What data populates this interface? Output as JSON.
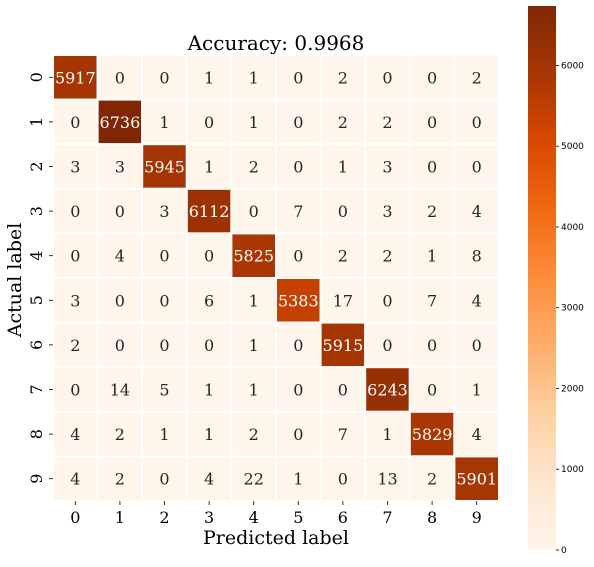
{
  "chart_data": {
    "type": "heatmap",
    "title": "Accuracy: 0.9968",
    "xlabel": "Predicted label",
    "ylabel": "Actual label",
    "x_categories": [
      "0",
      "1",
      "2",
      "3",
      "4",
      "5",
      "6",
      "7",
      "8",
      "9"
    ],
    "y_categories": [
      "0",
      "1",
      "2",
      "3",
      "4",
      "5",
      "6",
      "7",
      "8",
      "9"
    ],
    "matrix": [
      [
        5917,
        0,
        0,
        1,
        1,
        0,
        2,
        0,
        0,
        2
      ],
      [
        0,
        6736,
        1,
        0,
        1,
        0,
        2,
        2,
        0,
        0
      ],
      [
        3,
        3,
        5945,
        1,
        2,
        0,
        1,
        3,
        0,
        0
      ],
      [
        0,
        0,
        3,
        6112,
        0,
        7,
        0,
        3,
        2,
        4
      ],
      [
        0,
        4,
        0,
        0,
        5825,
        0,
        2,
        2,
        1,
        8
      ],
      [
        3,
        0,
        0,
        6,
        1,
        5383,
        17,
        0,
        7,
        4
      ],
      [
        2,
        0,
        0,
        0,
        1,
        0,
        5915,
        0,
        0,
        0
      ],
      [
        0,
        14,
        5,
        1,
        1,
        0,
        0,
        6243,
        0,
        1
      ],
      [
        4,
        2,
        1,
        1,
        2,
        0,
        7,
        1,
        5829,
        4
      ],
      [
        4,
        2,
        0,
        4,
        22,
        1,
        0,
        13,
        2,
        5901
      ]
    ],
    "colormap": "Oranges",
    "colormap_stops": [
      "#fff5eb",
      "#fee6ce",
      "#fdd0a2",
      "#fdae6b",
      "#fd8d3c",
      "#f16913",
      "#d94801",
      "#a63603",
      "#7f2704"
    ],
    "color_range": [
      0,
      6736
    ],
    "colorbar_ticks": [
      "0",
      "1000",
      "2000",
      "3000",
      "4000",
      "5000",
      "6000"
    ],
    "grid_lines": "white",
    "legend": "colorbar right"
  }
}
